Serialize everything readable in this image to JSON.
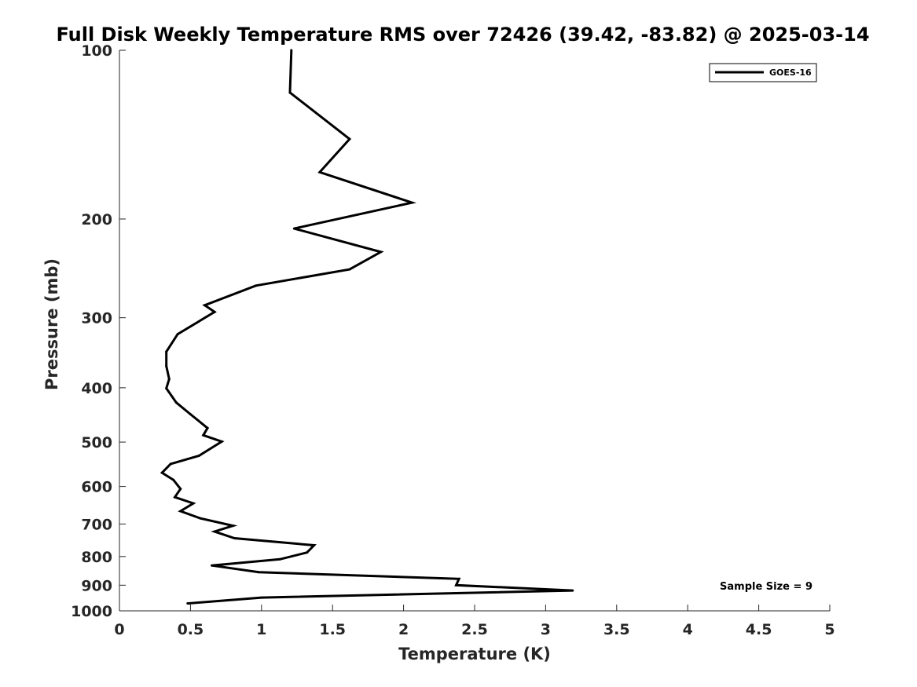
{
  "chart_data": {
    "type": "line",
    "title": "Full Disk Weekly Temperature RMS over 72426 (39.42, -83.82) @ 2025-03-14",
    "xlabel": "Temperature (K)",
    "ylabel": "Pressure (mb)",
    "xlim": [
      0,
      5
    ],
    "ylim": [
      1000,
      100
    ],
    "yscale": "log",
    "xticks": [
      0,
      0.5,
      1,
      1.5,
      2,
      2.5,
      3,
      3.5,
      4,
      4.5,
      5
    ],
    "xtick_labels": [
      "0",
      "0.5",
      "1",
      "1.5",
      "2",
      "2.5",
      "3",
      "3.5",
      "4",
      "4.5",
      "5"
    ],
    "yticks": [
      100,
      200,
      300,
      400,
      500,
      600,
      700,
      800,
      900,
      1000
    ],
    "ytick_labels": [
      "100",
      "200",
      "300",
      "400",
      "500",
      "600",
      "700",
      "800",
      "900",
      "1000"
    ],
    "grid": false,
    "legend_position": "top-right",
    "annotation": "Sample Size = 9",
    "series": [
      {
        "name": "GOES-16",
        "color": "#000000",
        "x": [
          1.21,
          1.2,
          1.62,
          1.41,
          2.06,
          1.23,
          1.84,
          1.62,
          0.96,
          0.6,
          0.67,
          0.41,
          0.33,
          0.33,
          0.35,
          0.33,
          0.4,
          0.5,
          0.62,
          0.59,
          0.72,
          0.56,
          0.36,
          0.3,
          0.38,
          0.43,
          0.39,
          0.52,
          0.43,
          0.57,
          0.8,
          0.67,
          0.81,
          1.37,
          1.32,
          1.13,
          0.65,
          0.98,
          2.39,
          2.37,
          3.19,
          1.0,
          0.48
        ],
        "y": [
          100,
          119,
          144,
          165,
          187,
          208,
          229,
          246,
          263,
          285,
          293,
          321,
          345,
          366,
          386,
          401,
          425,
          446,
          472,
          486,
          499,
          529,
          547,
          567,
          584,
          606,
          627,
          643,
          664,
          684,
          705,
          722,
          742,
          764,
          787,
          809,
          830,
          853,
          877,
          900,
          920,
          947,
          970
        ]
      }
    ]
  }
}
